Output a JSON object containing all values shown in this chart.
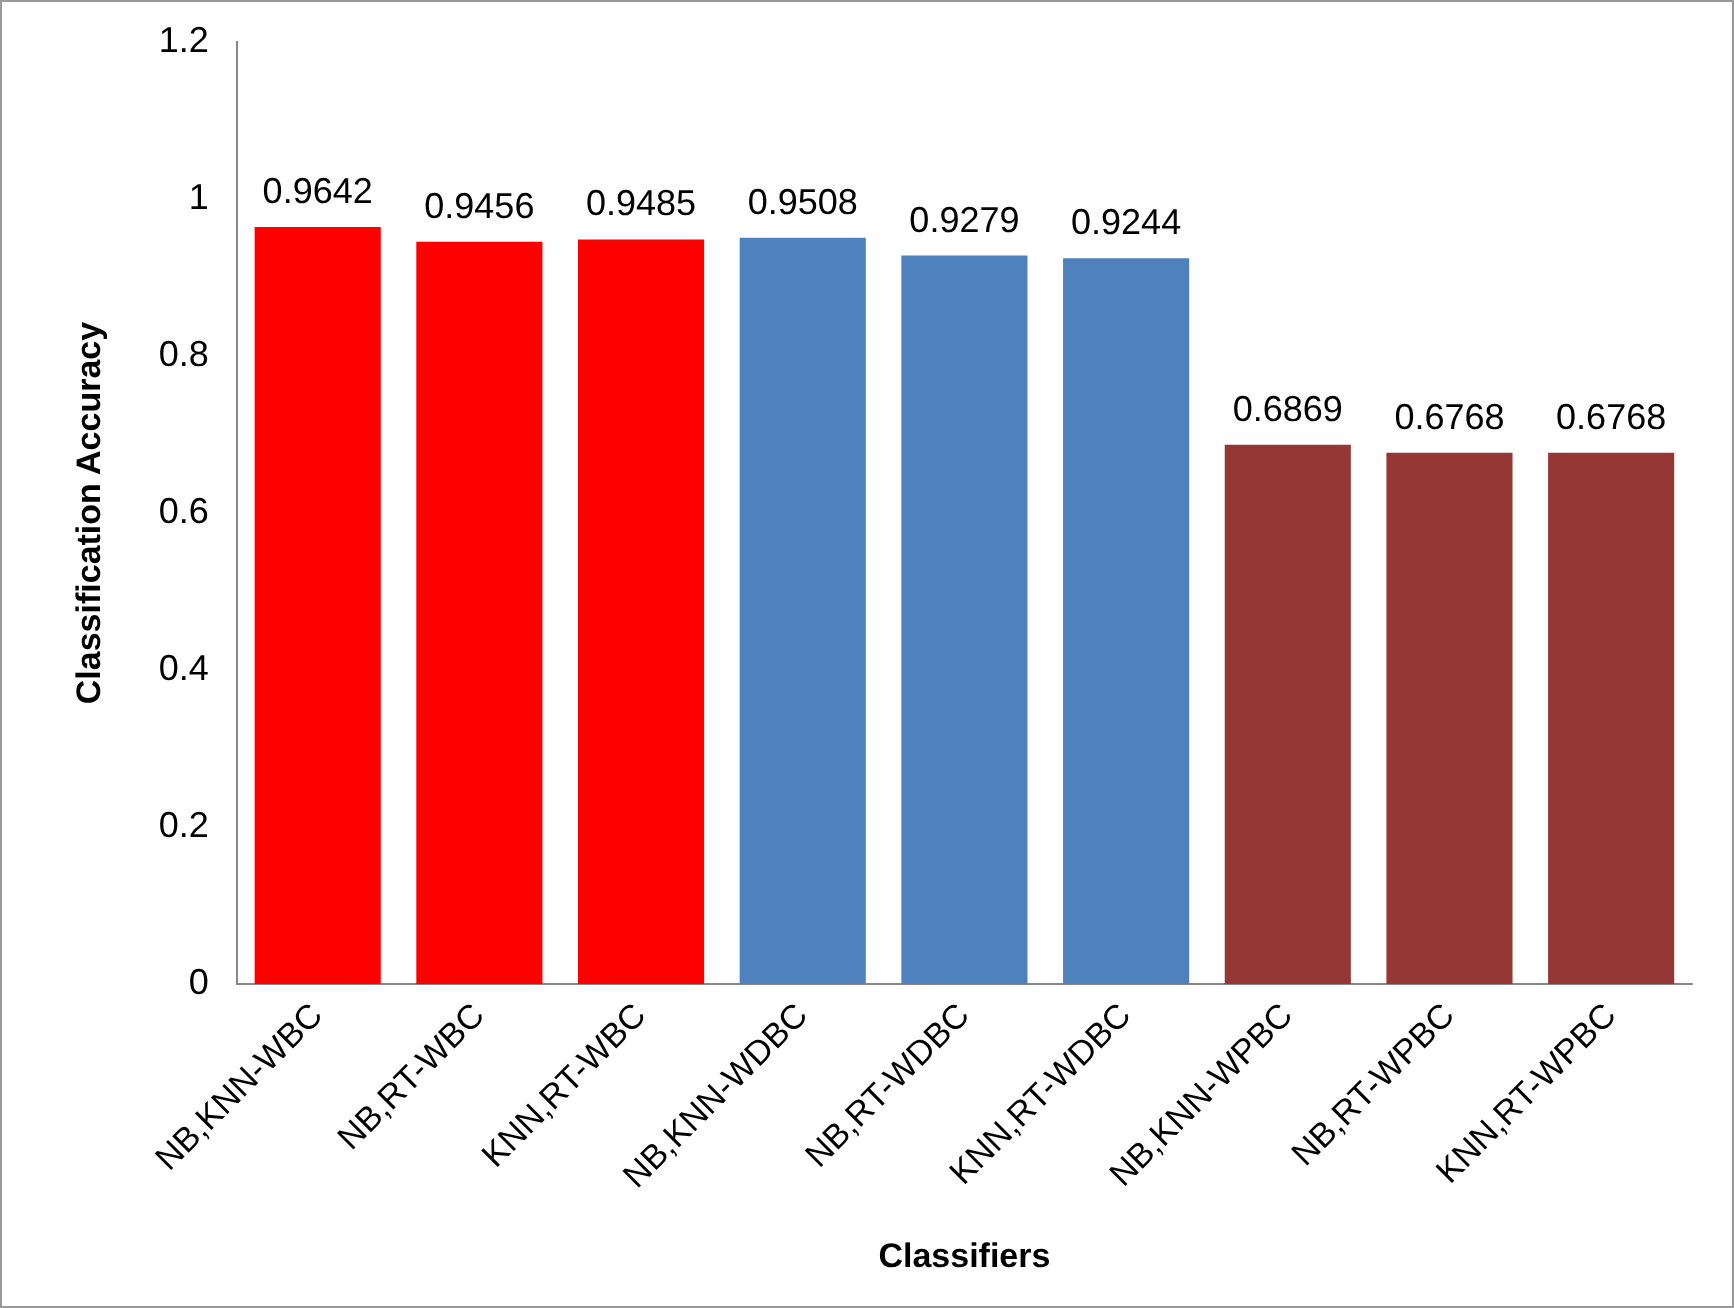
{
  "chart_data": {
    "type": "bar",
    "xlabel": "Classifiers",
    "ylabel": "Classification Accuracy",
    "categories": [
      "NB,KNN-WBC",
      "NB,RT-WBC",
      "KNN,RT-WBC",
      "NB,KNN-WDBC",
      "NB,RT-WDBC",
      "KNN,RT-WDBC",
      "NB,KNN-WPBC",
      "NB,RT-WPBC",
      "KNN,RT-WPBC"
    ],
    "values": [
      0.9642,
      0.9456,
      0.9485,
      0.9508,
      0.9279,
      0.9244,
      0.6869,
      0.6768,
      0.6768
    ],
    "colors": [
      "#ff0000",
      "#ff0000",
      "#ff0000",
      "#4f81bd",
      "#4f81bd",
      "#4f81bd",
      "#953735",
      "#953735",
      "#953735"
    ],
    "ylim": [
      0,
      1.2
    ],
    "yticks": [
      0,
      0.2,
      0.4,
      0.6,
      0.8,
      1,
      1.2
    ],
    "grid": false,
    "legend": false,
    "data_labels": true
  }
}
